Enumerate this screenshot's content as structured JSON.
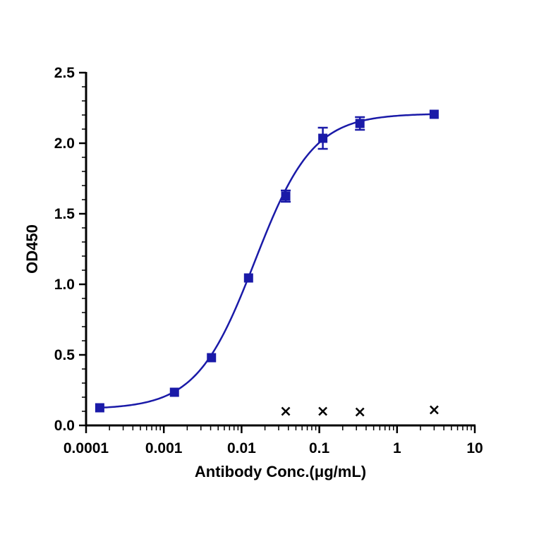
{
  "chart_data": {
    "type": "scatter",
    "xlabel": "Antibody Conc.(μg/mL)",
    "ylabel": "OD450",
    "x_scale": "log",
    "xlim": [
      0.0001,
      10
    ],
    "ylim": [
      0,
      2.5
    ],
    "x_ticks": [
      {
        "value": 0.0001,
        "label": "0.0001"
      },
      {
        "value": 0.001,
        "label": "0.001"
      },
      {
        "value": 0.01,
        "label": "0.01"
      },
      {
        "value": 0.1,
        "label": "0.1"
      },
      {
        "value": 1,
        "label": "1"
      },
      {
        "value": 10,
        "label": "10"
      }
    ],
    "y_ticks": [
      {
        "value": 0,
        "label": "0.0"
      },
      {
        "value": 0.5,
        "label": "0.5"
      },
      {
        "value": 1.0,
        "label": "1.0"
      },
      {
        "value": 1.5,
        "label": "1.5"
      },
      {
        "value": 2.0,
        "label": "2.0"
      },
      {
        "value": 2.5,
        "label": "2.5"
      }
    ],
    "grid": false,
    "legend": "none",
    "series": [
      {
        "marker": "square",
        "color": "#1a1aa8",
        "points": [
          {
            "x": 0.00015,
            "y": 0.125,
            "err": 0.01
          },
          {
            "x": 0.00137,
            "y": 0.235,
            "err": 0.012
          },
          {
            "x": 0.0041,
            "y": 0.48,
            "err": 0.015
          },
          {
            "x": 0.0123,
            "y": 1.045,
            "err": 0.02
          },
          {
            "x": 0.037,
            "y": 1.625,
            "err": 0.04
          },
          {
            "x": 0.111,
            "y": 2.035,
            "err": 0.075
          },
          {
            "x": 0.333,
            "y": 2.14,
            "err": 0.045
          },
          {
            "x": 3.0,
            "y": 2.205,
            "err": 0.02
          }
        ],
        "fit": {
          "model": "4PL",
          "bottom": 0.115,
          "top": 2.21,
          "ec50": 0.0148,
          "hill": 1.16
        }
      },
      {
        "marker": "x",
        "color": "#000000",
        "points": [
          {
            "x": 0.037,
            "y": 0.1
          },
          {
            "x": 0.111,
            "y": 0.1
          },
          {
            "x": 0.333,
            "y": 0.095
          },
          {
            "x": 3.0,
            "y": 0.11
          }
        ]
      }
    ]
  }
}
